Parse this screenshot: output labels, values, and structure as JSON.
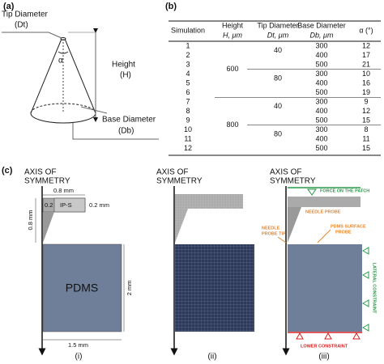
{
  "panel_a": {
    "label": "(a)",
    "tip_diameter": [
      "Tip Diameter",
      "(Dt)"
    ],
    "height": [
      "Height",
      "(H)"
    ],
    "alpha": "α",
    "base_diameter": [
      "Base Diameter",
      "(Db)"
    ]
  },
  "panel_b": {
    "label": "(b)",
    "headers": [
      [
        "Simulation"
      ],
      [
        "Height",
        "H, μm"
      ],
      [
        "Tip Diameter",
        "Dt, μm"
      ],
      [
        "Base Diameter",
        "Db, μm"
      ],
      [
        "α (°)"
      ]
    ],
    "simulations": [
      "1",
      "2",
      "3",
      "4",
      "5",
      "6",
      "7",
      "8",
      "9",
      "10",
      "11",
      "12"
    ],
    "heights": [
      "600",
      "800"
    ],
    "tip_diameters": [
      "40",
      "80",
      "40",
      "80"
    ],
    "base_diameters": [
      "300",
      "400",
      "500",
      "300",
      "400",
      "500",
      "300",
      "400",
      "500",
      "300",
      "400",
      "500"
    ],
    "alphas": [
      "12",
      "17",
      "21",
      "10",
      "16",
      "19",
      "9",
      "12",
      "15",
      "8",
      "11",
      "15"
    ]
  },
  "panel_c": {
    "label": "(c)",
    "axis_label": [
      "AXIS OF",
      "SYMMETRY"
    ],
    "probe_material": "IP-S",
    "substrate": "PDMS",
    "dims": {
      "probe_width": "0.8 mm",
      "tip_width": "0.2",
      "probe_thickness": "0.2 mm",
      "probe_height": "0.8 mm",
      "substrate_height": "2 mm",
      "substrate_width": "1.5 mm"
    },
    "subpanels": [
      "(i)",
      "(ii)",
      "(iii)"
    ],
    "annotations": {
      "force": "FORCE ON THE PATCH",
      "needle_probe": "NEEDLE PROBE",
      "needle_probe_tip": [
        "NEEDLE",
        "PROBE TIP"
      ],
      "surface_probe": [
        "PDMS SURFACE",
        "PROBE"
      ],
      "lateral": "LATERAL CONSTRAINT",
      "lower": "LOWER CONSTRAINT"
    }
  }
}
